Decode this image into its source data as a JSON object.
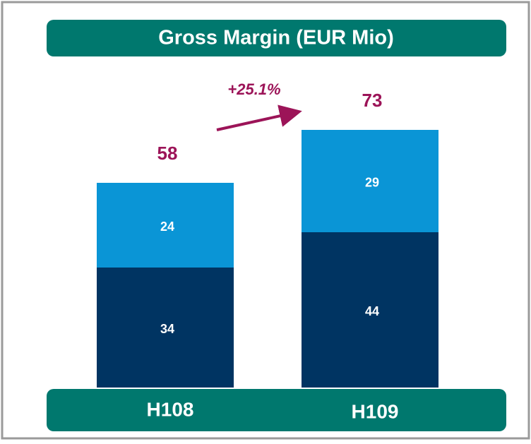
{
  "chart_data": {
    "type": "stacked_bar",
    "title": "Gross Margin (EUR Mio)",
    "categories": [
      "H108",
      "H109"
    ],
    "series": [
      {
        "color": "#003462",
        "values": [
          34,
          44
        ]
      },
      {
        "color": "#0a95d6",
        "values": [
          24,
          29
        ]
      }
    ],
    "totals": [
      58,
      73
    ],
    "annotation": "+25.1%",
    "ylim": [
      0,
      100
    ]
  }
}
